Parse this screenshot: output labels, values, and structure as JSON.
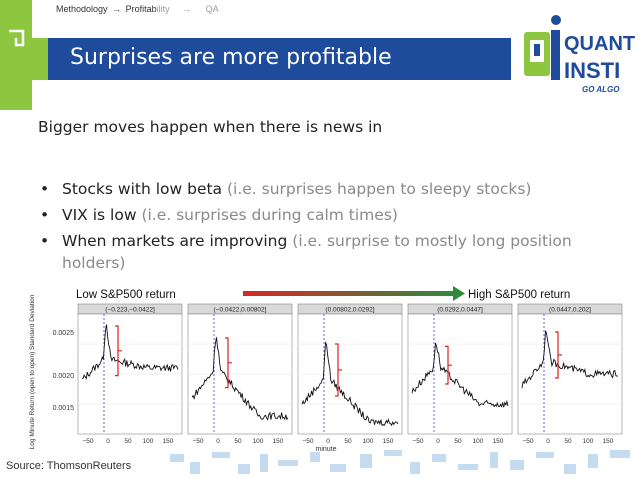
{
  "breadcrumb": {
    "step1": "Methodology",
    "arrow1": "→",
    "step2_bold": "Profitab",
    "step2_rest": "ility",
    "arrow2": "→",
    "step3": "QA"
  },
  "slide": {
    "title": "Surprises are more profitable",
    "intro": "Bigger moves happen when there is news in",
    "bullets": [
      {
        "lead": "Stocks with low beta ",
        "note": "(i.e. surprises happen to sleepy stocks)"
      },
      {
        "lead": "VIX is low ",
        "note": "(i.e. surprises during calm times)"
      },
      {
        "lead": "When markets are improving ",
        "note": "(i.e. surprise to mostly long position holders)"
      }
    ],
    "source": "Source: ThomsonReuters"
  },
  "logo": {
    "line1": "QUANT",
    "line2": "INSTI",
    "tagline": "GO ALGO"
  },
  "colors": {
    "accent_blue": "#1e4b9b",
    "accent_green": "#8dc63f",
    "arrow_start": "#d9252a",
    "arrow_end": "#2e8b3a"
  },
  "chart": {
    "arrow_left_label": "Low S&P500 return",
    "arrow_right_label": "High S&P500 return",
    "ylabel": "Log Minute Return (open to open) Standard Deviation",
    "xlabel": "minute",
    "yticks": [
      "0.0025",
      "0.0020",
      "0.0015"
    ],
    "xticks": [
      "−50",
      "0",
      "50",
      "100",
      "150"
    ],
    "panels": [
      {
        "label": "(−0.223,−0.0422]"
      },
      {
        "label": "(−0.0422,0.00802]"
      },
      {
        "label": "(0.00802,0.0292]"
      },
      {
        "label": "(0.0292,0.0447]"
      },
      {
        "label": "(0.0447,0.202]"
      }
    ]
  }
}
